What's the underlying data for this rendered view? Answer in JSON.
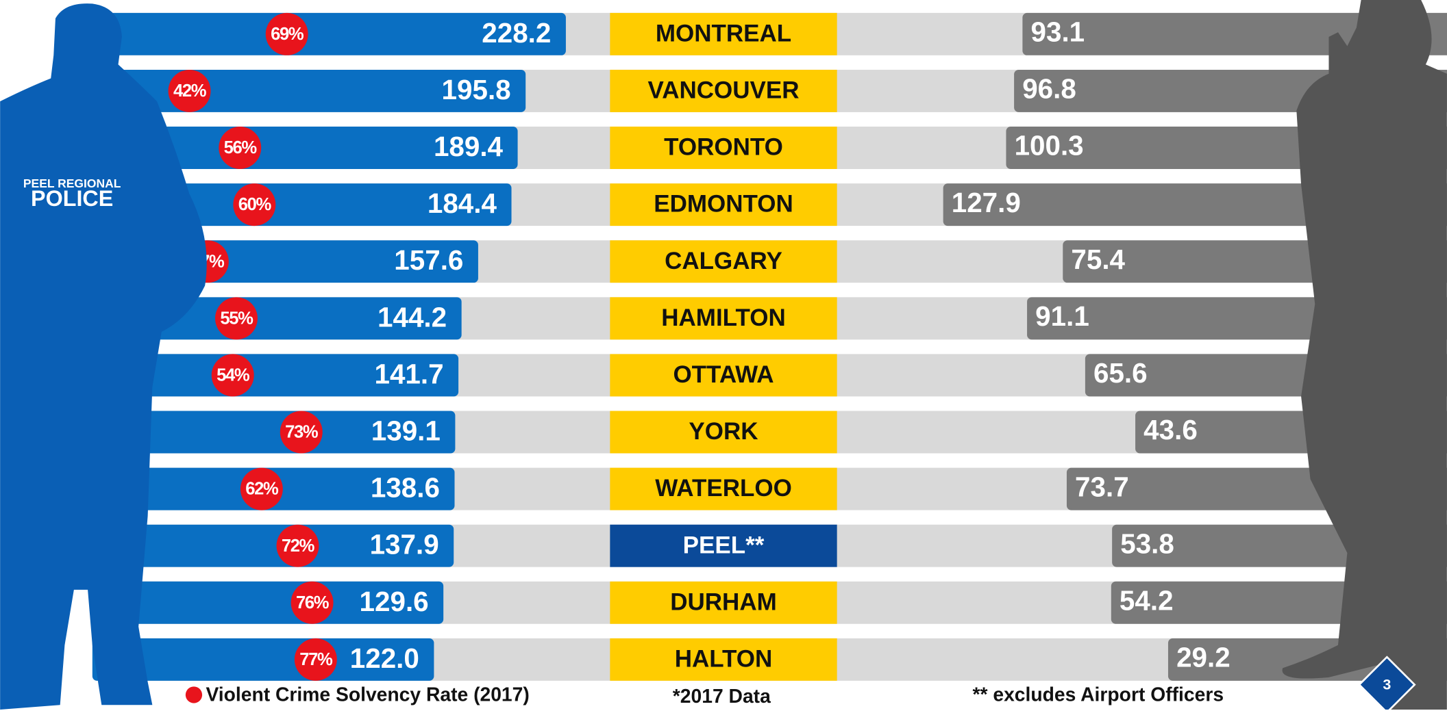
{
  "chart_data": {
    "type": "bar",
    "categories": [
      "MONTREAL",
      "VANCOUVER",
      "TORONTO",
      "EDMONTON",
      "CALGARY",
      "HAMILTON",
      "OTTAWA",
      "YORK",
      "WATERLOO",
      "PEEL**",
      "DURHAM",
      "HALTON"
    ],
    "category_colors": [
      "#ffcc00",
      "#ffcc00",
      "#ffcc00",
      "#ffcc00",
      "#ffcc00",
      "#ffcc00",
      "#ffcc00",
      "#ffcc00",
      "#ffcc00",
      "#0b4a99",
      "#ffcc00",
      "#ffcc00"
    ],
    "series": [
      {
        "color": "#0a6fc2",
        "values": [
          228.2,
          195.8,
          189.4,
          184.4,
          157.6,
          144.2,
          141.7,
          139.1,
          138.6,
          137.9,
          129.6,
          122.0
        ],
        "value_labels": [
          "228.2",
          "195.8",
          "189.4",
          "184.4",
          "157.6",
          "144.2",
          "141.7",
          "139.1",
          "138.6",
          "137.9",
          "129.6",
          "122.0"
        ]
      },
      {
        "color": "#7a7a7a",
        "values": [
          93.1,
          96.8,
          100.3,
          127.9,
          75.4,
          91.1,
          65.6,
          43.6,
          73.7,
          53.8,
          54.2,
          29.2
        ],
        "value_labels": [
          "93.1",
          "96.8",
          "100.3",
          "127.9",
          "75.4",
          "91.1",
          "65.6",
          "43.6",
          "73.7",
          "53.8",
          "54.2",
          "29.2"
        ]
      },
      {
        "name": "Violent Crime Solvency Rate (2017)",
        "color": "#e8141c",
        "values": [
          69,
          42,
          56,
          60,
          47,
          55,
          54,
          73,
          62,
          72,
          76,
          77
        ],
        "value_labels": [
          "69%",
          "42%",
          "56%",
          "60%",
          "47%",
          "55%",
          "54%",
          "73%",
          "62%",
          "72%",
          "76%",
          "77%"
        ]
      }
    ],
    "notes": [
      "*2017 Data",
      "** excludes Airport Officers"
    ],
    "logo": [
      "PEEL REGIONAL",
      "POLICE"
    ],
    "page_number": "3"
  }
}
